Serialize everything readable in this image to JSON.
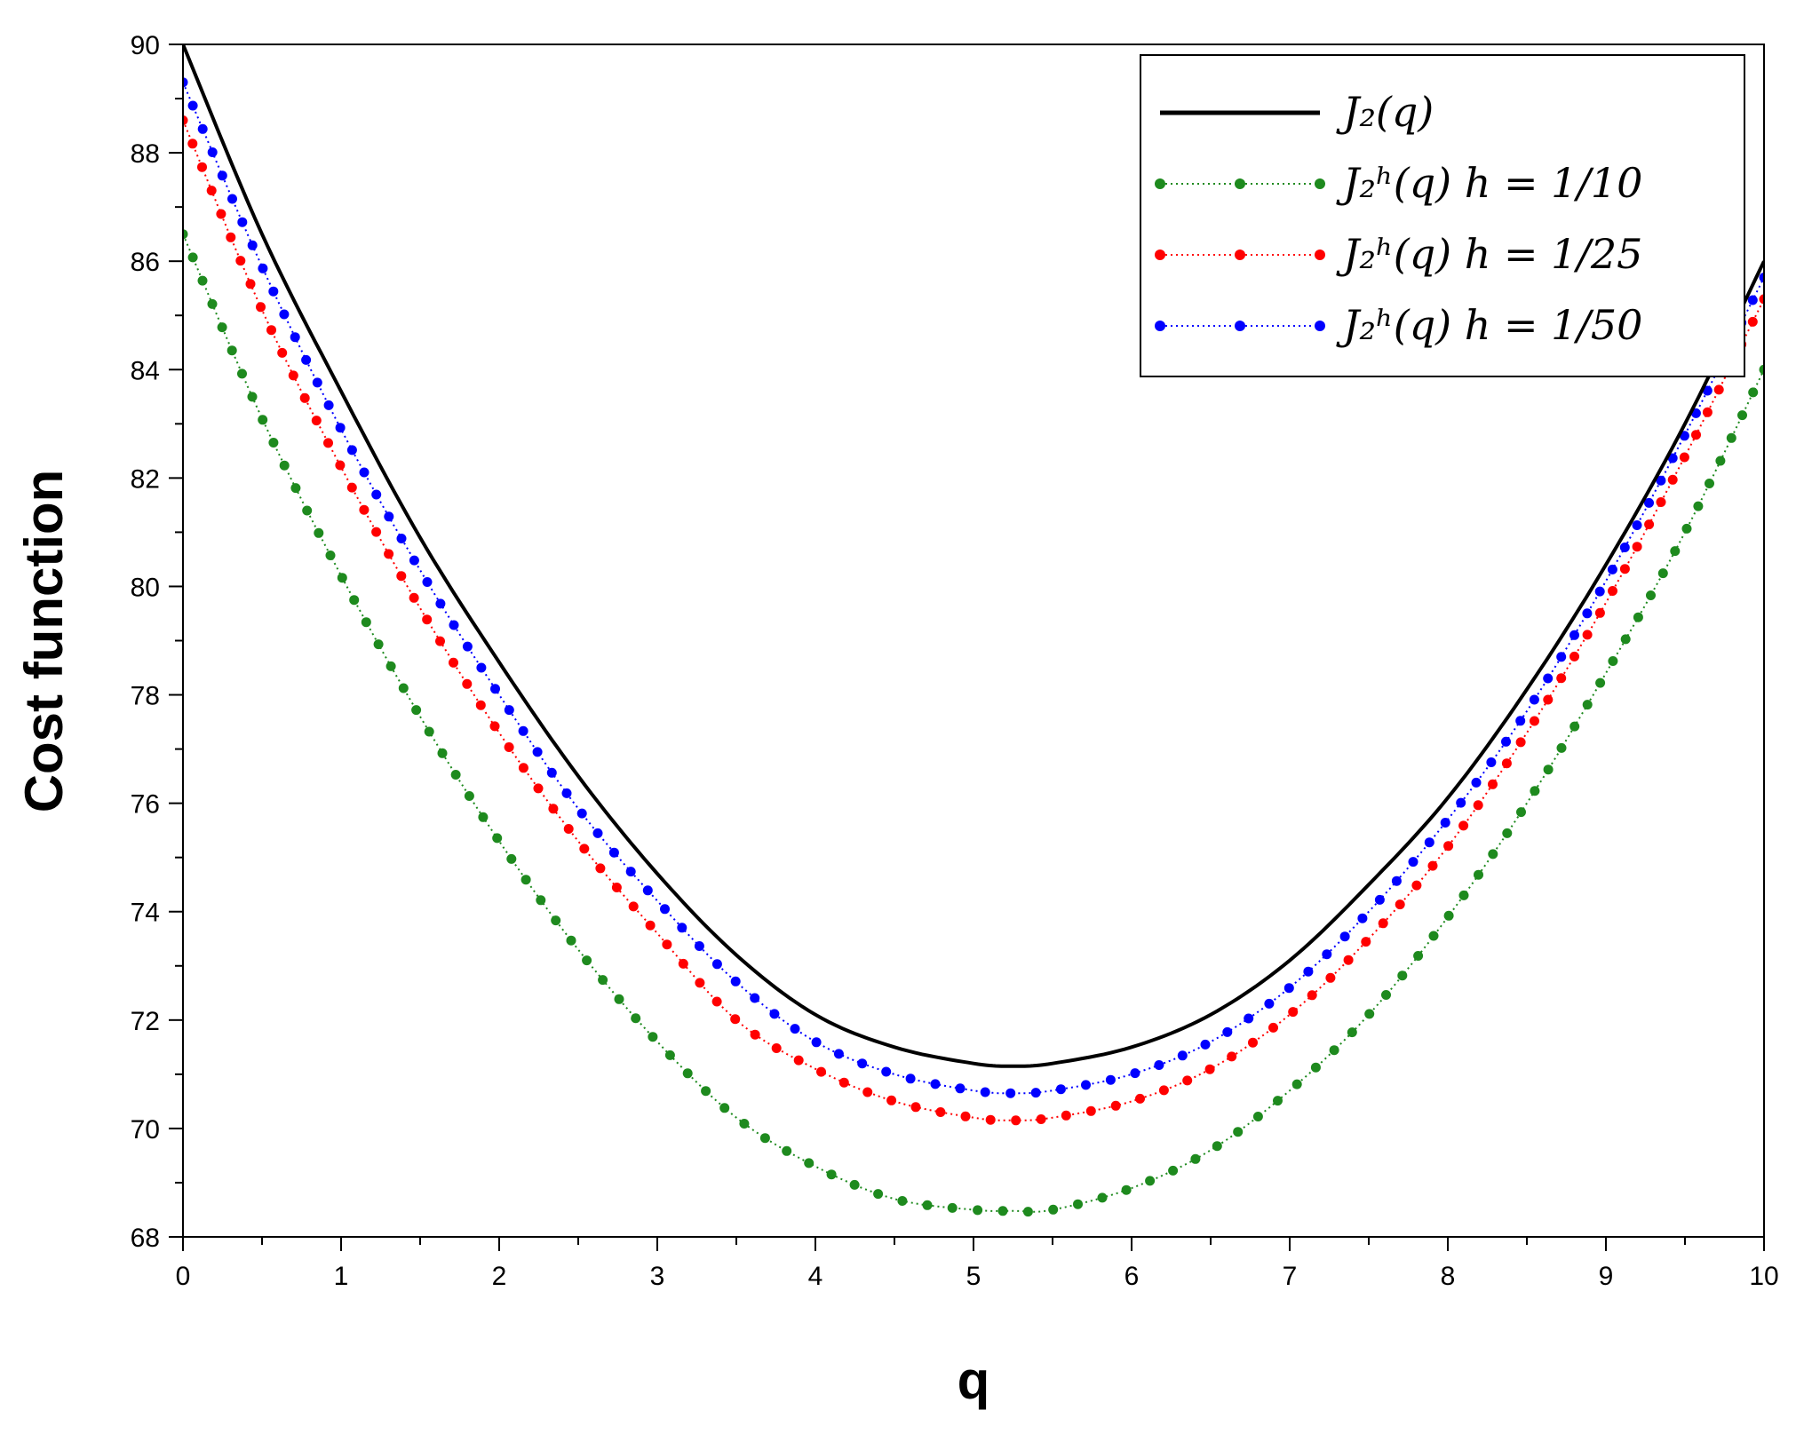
{
  "chart_data": {
    "type": "line",
    "xlabel": "q",
    "ylabel": "Cost function",
    "xlim": [
      0,
      10
    ],
    "ylim": [
      68,
      90
    ],
    "x_ticks": [
      0,
      1,
      2,
      3,
      4,
      5,
      6,
      7,
      8,
      9,
      10
    ],
    "y_ticks": [
      68,
      70,
      72,
      74,
      76,
      78,
      80,
      82,
      84,
      86,
      88,
      90
    ],
    "grid": false,
    "legend_position": "top-right",
    "series": [
      {
        "name": "J₂(q)",
        "style": "solid",
        "color": "#000000",
        "x": [
          0,
          0.5,
          1,
          1.5,
          2,
          2.5,
          3,
          3.5,
          4,
          4.5,
          5,
          5.25,
          5.5,
          6,
          6.5,
          7,
          7.5,
          8,
          8.5,
          9,
          9.5,
          10
        ],
        "y": [
          90.0,
          86.5,
          83.6,
          80.9,
          78.6,
          76.5,
          74.7,
          73.2,
          72.1,
          71.5,
          71.2,
          71.15,
          71.2,
          71.5,
          72.1,
          73.1,
          74.5,
          76.1,
          78.1,
          80.4,
          83.0,
          86.0
        ]
      },
      {
        "name": "J₂ʰ(q)  h = 1/10",
        "style": "dotted-markers",
        "color": "#1e8a1e",
        "x": [
          0,
          0.5,
          1,
          1.5,
          2,
          2.5,
          3,
          3.5,
          4,
          4.5,
          5,
          5.25,
          5.5,
          6,
          6.5,
          7,
          7.5,
          8,
          8.5,
          9,
          9.5,
          10
        ],
        "y": [
          86.5,
          83.1,
          80.2,
          77.6,
          75.3,
          73.3,
          71.6,
          70.2,
          69.3,
          68.7,
          68.5,
          68.48,
          68.5,
          68.9,
          69.6,
          70.7,
          72.1,
          73.9,
          76.0,
          78.4,
          81.0,
          84.0
        ]
      },
      {
        "name": "J₂ʰ(q)  h = 1/25",
        "style": "dotted-markers",
        "color": "#ff0000",
        "x": [
          0,
          0.5,
          1,
          1.5,
          2,
          2.5,
          3,
          3.5,
          4,
          4.5,
          5,
          5.25,
          5.5,
          6,
          6.5,
          7,
          7.5,
          8,
          8.5,
          9,
          9.5,
          10
        ],
        "y": [
          88.6,
          85.1,
          82.2,
          79.6,
          77.3,
          75.3,
          73.6,
          72.0,
          71.1,
          70.5,
          70.2,
          70.15,
          70.2,
          70.5,
          71.1,
          72.1,
          73.5,
          75.2,
          77.3,
          79.7,
          82.4,
          85.3
        ]
      },
      {
        "name": "J₂ʰ(q)  h = 1/50",
        "style": "dotted-markers",
        "color": "#0000ff",
        "x": [
          0,
          0.5,
          1,
          1.5,
          2,
          2.5,
          3,
          3.5,
          4,
          4.5,
          5,
          5.25,
          5.5,
          6,
          6.5,
          7,
          7.5,
          8,
          8.5,
          9,
          9.5,
          10
        ],
        "y": [
          89.3,
          85.9,
          82.9,
          80.3,
          78.0,
          75.9,
          74.2,
          72.7,
          71.6,
          71.0,
          70.7,
          70.65,
          70.7,
          71.0,
          71.6,
          72.6,
          74.0,
          75.7,
          77.7,
          80.1,
          82.8,
          85.7
        ]
      }
    ]
  }
}
